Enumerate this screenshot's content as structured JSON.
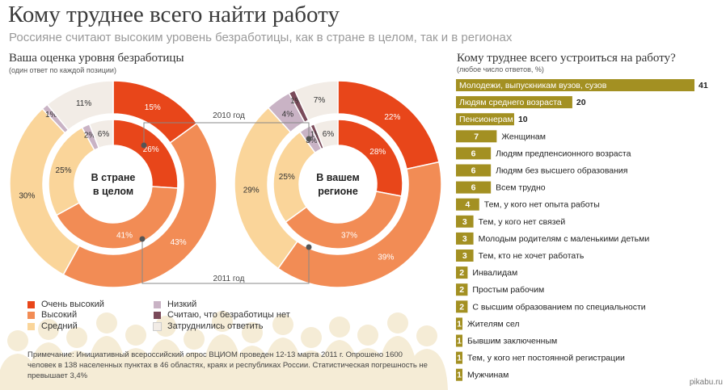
{
  "title": "Кому труднее всего найти работу",
  "subtitle": "Россияне считают высоким уровень безработицы, как в стране в целом, так и в регионах",
  "left_heading": "Ваша оценка уровня безработицы",
  "left_note": "(один ответ по каждой позиции)",
  "right_heading": "Кому труднее всего устроиться на работу?",
  "right_note": "(любое число ответов, %)",
  "colors": {
    "very_high": "#e8461a",
    "high": "#f28c55",
    "medium": "#fad59a",
    "low": "#c9b3c5",
    "none": "#7a4a5a",
    "hard_to_say": "#f2ece6",
    "bar": "#a39022"
  },
  "year_labels": {
    "y2010": "2010 год",
    "y2011": "2011 год"
  },
  "legend": [
    {
      "label": "Очень высокий",
      "color": "#e8461a"
    },
    {
      "label": "Высокий",
      "color": "#f28c55"
    },
    {
      "label": "Средний",
      "color": "#fad59a"
    },
    {
      "label": "Низкий",
      "color": "#c9b3c5"
    },
    {
      "label": "Считаю, что безработицы нет",
      "color": "#7a4a5a"
    },
    {
      "label": "Затруднились ответить",
      "color": "#f2ece6"
    }
  ],
  "footnote": "Примечание: Инициативный всероссийский опрос ВЦИОМ проведен 12-13 марта 2011 г. Опрошено 1600 человек в 138 населенных пунктах в 46 областях, краях и республиках России. Статистическая погрешность не превышает 3,4%",
  "watermark": "pikabu.ru",
  "chart_data": [
    {
      "type": "pie",
      "title": "В стране в целом",
      "center_label": [
        "В стране",
        "в целом"
      ],
      "categories": [
        "Очень высокий",
        "Высокий",
        "Средний",
        "Низкий",
        "Считаю, что безработицы нет",
        "Затруднились ответить"
      ],
      "series": [
        {
          "name": "2011 год",
          "ring": "outer",
          "values": [
            15,
            43,
            30,
            1,
            0,
            11
          ],
          "labels": [
            "15%",
            "43%",
            "30%",
            "1%",
            "",
            "11%"
          ]
        },
        {
          "name": "2010 год",
          "ring": "inner",
          "values": [
            26,
            41,
            25,
            2,
            0,
            6
          ],
          "labels": [
            "26%",
            "41%",
            "25%",
            "2%",
            "",
            "6%"
          ]
        }
      ]
    },
    {
      "type": "pie",
      "title": "В вашем регионе",
      "center_label": [
        "В вашем",
        "регионе"
      ],
      "categories": [
        "Очень высокий",
        "Высокий",
        "Средний",
        "Низкий",
        "Считаю, что безработицы нет",
        "Затруднились ответить"
      ],
      "series": [
        {
          "name": "2011 год",
          "ring": "outer",
          "values": [
            22,
            39,
            29,
            4,
            1,
            7
          ],
          "labels": [
            "22%",
            "39%",
            "29%",
            "4%",
            "1%",
            "7%"
          ]
        },
        {
          "name": "2010 год",
          "ring": "inner",
          "values": [
            28,
            37,
            25,
            3,
            1,
            6
          ],
          "labels": [
            "28%",
            "37%",
            "25%",
            "3%",
            "1%",
            "6%"
          ]
        }
      ]
    },
    {
      "type": "bar",
      "orientation": "horizontal",
      "title": "Кому труднее всего устроиться на работу?",
      "categories": [
        "Молодежи, выпускникам вузов, сузов",
        "Людям среднего возраста",
        "Пенсионерам",
        "Женщинам",
        "Людям предпенсионного возраста",
        "Людям без высшего образования",
        "Всем трудно",
        "Тем, у кого нет опыта работы",
        "Тем, у кого нет связей",
        "Молодым родителям с маленькими детьми",
        "Тем, кто не хочет работать",
        "Инвалидам",
        "Простым рабочим",
        "С высшим образованием по специальности",
        "Жителям сел",
        "Бывшим заключенным",
        "Тем, у кого нет постоянной регистрации",
        "Мужчинам"
      ],
      "values": [
        41,
        20,
        10,
        7,
        6,
        6,
        6,
        4,
        3,
        3,
        3,
        2,
        2,
        2,
        1,
        1,
        1,
        1
      ]
    }
  ]
}
